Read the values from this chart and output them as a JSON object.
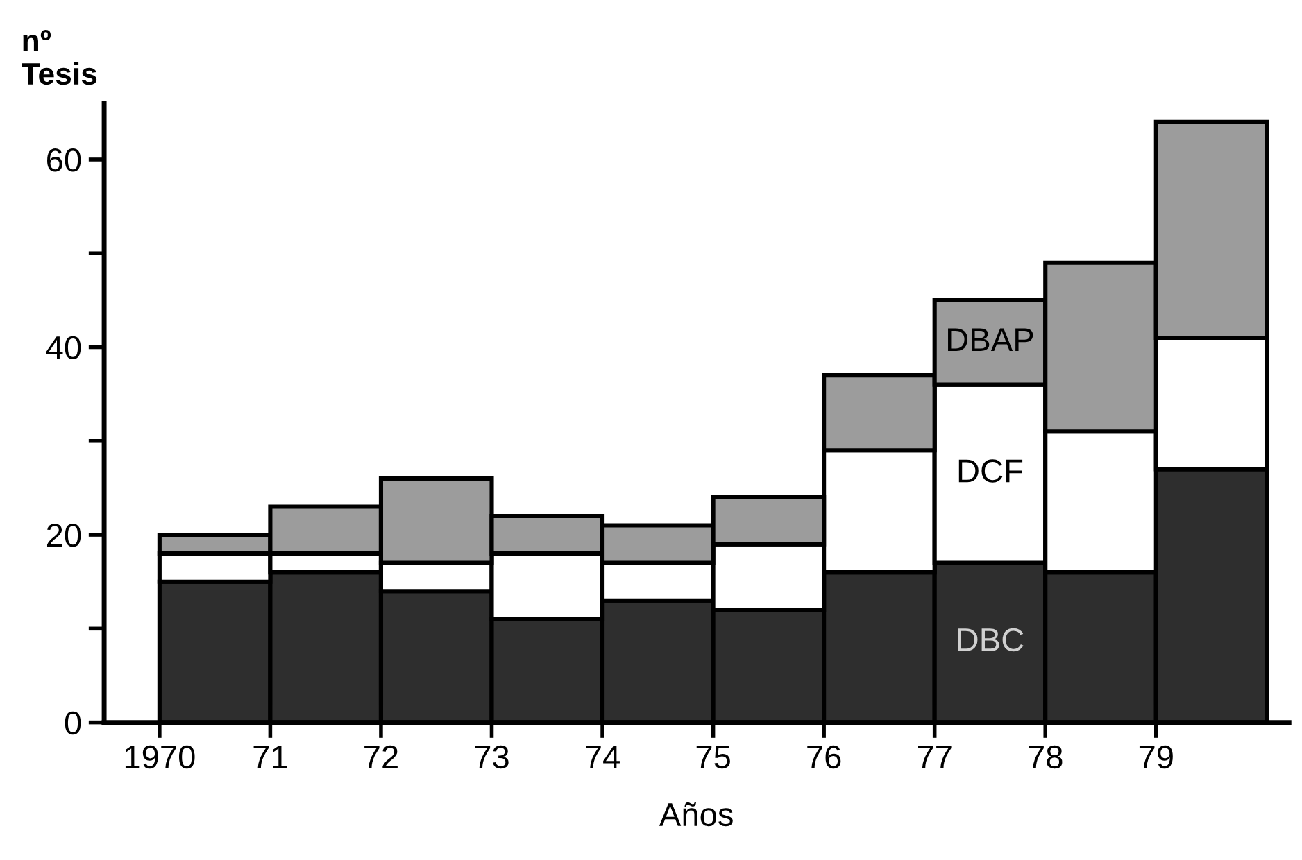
{
  "chart_data": {
    "type": "bar",
    "stacked": true,
    "xlabel": "Años",
    "ylabel": "nº\nTesis",
    "x": [
      1970.5,
      1971.5,
      1972.5,
      1973.5,
      1974.5,
      1975.5,
      1976.5,
      1977.5,
      1978.5,
      1979.5
    ],
    "xlim": [
      1969.5,
      1980.2
    ],
    "xticks": [
      1970,
      {
        "value": 1971,
        "label": "71"
      },
      {
        "value": 1972,
        "label": "72"
      },
      {
        "value": 1973,
        "label": "73"
      },
      {
        "value": 1974,
        "label": "74"
      },
      {
        "value": 1975,
        "label": "75"
      },
      {
        "value": 1976,
        "label": "76"
      },
      {
        "value": 1977,
        "label": "77"
      },
      {
        "value": 1978,
        "label": "78"
      },
      {
        "value": 1979,
        "label": "79"
      }
    ],
    "ylim": [
      0,
      66
    ],
    "yticks": [
      0,
      {
        "value": 10,
        "label": null
      },
      20,
      {
        "value": 30,
        "label": null
      },
      40,
      {
        "value": 50,
        "label": null
      },
      60
    ],
    "series": [
      {
        "name": "DBC",
        "color": "#2e2e2e",
        "values": [
          15,
          16,
          14,
          11,
          13,
          12,
          16,
          17,
          16,
          27
        ]
      },
      {
        "name": "DCF",
        "color": "#ffffff",
        "values": [
          3,
          2,
          3,
          7,
          4,
          7,
          13,
          19,
          15,
          14
        ]
      },
      {
        "name": "DBAP",
        "color": "#9c9c9c",
        "values": [
          2,
          5,
          9,
          4,
          4,
          5,
          8,
          9,
          18,
          23
        ]
      }
    ]
  }
}
